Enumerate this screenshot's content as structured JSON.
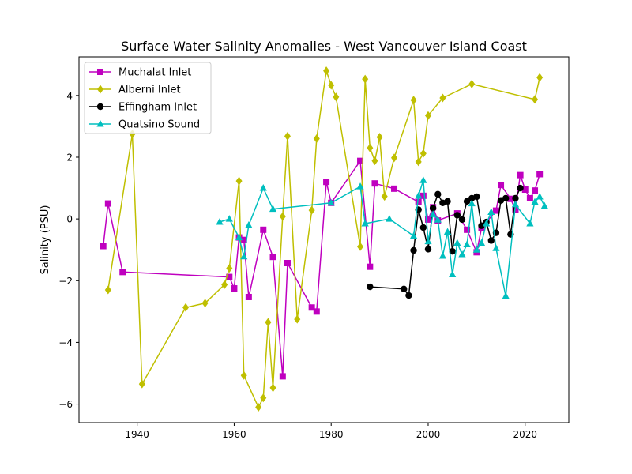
{
  "chart_data": {
    "type": "line",
    "title": "Surface Water Salinity Anomalies - West Vancouver Island Coast",
    "xlabel": "",
    "ylabel": "Salinity (PSU)",
    "xlim": [
      1928,
      2029
    ],
    "ylim": [
      -6.6,
      5.25
    ],
    "xticks": [
      1940,
      1960,
      1980,
      2000,
      2020
    ],
    "yticks": [
      -6,
      -4,
      -2,
      0,
      2,
      4
    ],
    "grid": false,
    "legend_position": "top-left",
    "series": [
      {
        "name": "Muchalat Inlet",
        "color": "#bf00bf",
        "marker": "square",
        "points": [
          [
            1933,
            -0.88
          ],
          [
            1934,
            0.5
          ],
          [
            1937,
            -1.72
          ],
          [
            1959,
            -1.88
          ],
          [
            1960,
            -2.25
          ],
          [
            1961,
            -0.6
          ],
          [
            1962,
            -0.68
          ],
          [
            1963,
            -2.53
          ],
          [
            1966,
            -0.35
          ],
          [
            1968,
            -1.23
          ],
          [
            1970,
            -5.1
          ],
          [
            1971,
            -1.43
          ],
          [
            1976,
            -2.87
          ],
          [
            1977,
            -3.0
          ],
          [
            1979,
            1.2
          ],
          [
            1980,
            0.52
          ],
          [
            1986,
            1.88
          ],
          [
            1988,
            -1.55
          ],
          [
            1989,
            1.15
          ],
          [
            1993,
            0.98
          ],
          [
            1998,
            0.55
          ],
          [
            1999,
            0.75
          ],
          [
            2000,
            -0.02
          ],
          [
            2001,
            0.38
          ],
          [
            2002,
            -0.05
          ],
          [
            2006,
            0.18
          ],
          [
            2008,
            -0.35
          ],
          [
            2010,
            -1.08
          ],
          [
            2011,
            -0.3
          ],
          [
            2014,
            0.27
          ],
          [
            2015,
            1.1
          ],
          [
            2017,
            0.65
          ],
          [
            2018,
            0.3
          ],
          [
            2019,
            1.42
          ],
          [
            2020,
            0.95
          ],
          [
            2021,
            0.67
          ],
          [
            2022,
            0.92
          ],
          [
            2023,
            1.45
          ]
        ]
      },
      {
        "name": "Alberni Inlet",
        "color": "#bfbf00",
        "marker": "diamond",
        "points": [
          [
            1934,
            -2.3
          ],
          [
            1939,
            2.75
          ],
          [
            1941,
            -5.35
          ],
          [
            1950,
            -2.87
          ],
          [
            1954,
            -2.73
          ],
          [
            1958,
            -2.13
          ],
          [
            1959,
            -1.6
          ],
          [
            1961,
            1.23
          ],
          [
            1962,
            -5.07
          ],
          [
            1965,
            -6.1
          ],
          [
            1966,
            -5.8
          ],
          [
            1967,
            -3.35
          ],
          [
            1968,
            -5.47
          ],
          [
            1970,
            0.08
          ],
          [
            1971,
            2.68
          ],
          [
            1973,
            -3.25
          ],
          [
            1976,
            0.28
          ],
          [
            1977,
            2.6
          ],
          [
            1979,
            4.8
          ],
          [
            1980,
            4.33
          ],
          [
            1981,
            3.95
          ],
          [
            1986,
            -0.9
          ],
          [
            1987,
            4.53
          ],
          [
            1988,
            2.3
          ],
          [
            1989,
            1.88
          ],
          [
            1990,
            2.65
          ],
          [
            1991,
            0.73
          ],
          [
            1993,
            1.98
          ],
          [
            1997,
            3.85
          ],
          [
            1998,
            1.85
          ],
          [
            1999,
            2.12
          ],
          [
            2000,
            3.35
          ],
          [
            2003,
            3.92
          ],
          [
            2009,
            4.37
          ],
          [
            2022,
            3.87
          ],
          [
            2023,
            4.58
          ]
        ]
      },
      {
        "name": "Effingham Inlet",
        "color": "#000000",
        "marker": "circle",
        "points": [
          [
            1988,
            -2.2
          ],
          [
            1995,
            -2.27
          ],
          [
            1996,
            -2.48
          ],
          [
            1997,
            -1.02
          ],
          [
            1998,
            0.3
          ],
          [
            1999,
            -0.28
          ],
          [
            2000,
            -0.98
          ],
          [
            2001,
            0.35
          ],
          [
            2002,
            0.8
          ],
          [
            2003,
            0.52
          ],
          [
            2004,
            0.57
          ],
          [
            2005,
            -1.05
          ],
          [
            2006,
            0.12
          ],
          [
            2007,
            -0.02
          ],
          [
            2008,
            0.57
          ],
          [
            2009,
            0.67
          ],
          [
            2010,
            0.72
          ],
          [
            2011,
            -0.22
          ],
          [
            2012,
            -0.1
          ],
          [
            2013,
            -0.7
          ],
          [
            2014,
            -0.45
          ],
          [
            2015,
            0.6
          ],
          [
            2016,
            0.67
          ],
          [
            2017,
            -0.5
          ],
          [
            2018,
            0.67
          ],
          [
            2019,
            1.0
          ]
        ]
      },
      {
        "name": "Quatsino Sound",
        "color": "#00bfbf",
        "marker": "triangle-up",
        "points": [
          [
            1957,
            -0.1
          ],
          [
            1959,
            0.0
          ],
          [
            1961,
            -0.6
          ],
          [
            1962,
            -1.22
          ],
          [
            1963,
            -0.2
          ],
          [
            1966,
            1.0
          ],
          [
            1968,
            0.32
          ],
          [
            1980,
            0.52
          ],
          [
            1986,
            1.05
          ],
          [
            1987,
            -0.15
          ],
          [
            1992,
            0.0
          ],
          [
            1997,
            -0.55
          ],
          [
            1998,
            0.75
          ],
          [
            1999,
            1.25
          ],
          [
            2000,
            -0.73
          ],
          [
            2001,
            0.15
          ],
          [
            2002,
            -0.03
          ],
          [
            2003,
            -1.2
          ],
          [
            2004,
            -0.42
          ],
          [
            2005,
            -1.8
          ],
          [
            2006,
            -0.78
          ],
          [
            2007,
            -1.15
          ],
          [
            2008,
            -0.83
          ],
          [
            2009,
            0.5
          ],
          [
            2010,
            -1.0
          ],
          [
            2011,
            -0.78
          ],
          [
            2012,
            -0.15
          ],
          [
            2013,
            0.22
          ],
          [
            2014,
            -0.95
          ],
          [
            2016,
            -2.5
          ],
          [
            2018,
            0.47
          ],
          [
            2021,
            -0.15
          ],
          [
            2022,
            0.55
          ],
          [
            2023,
            0.72
          ],
          [
            2024,
            0.42
          ]
        ]
      }
    ]
  }
}
